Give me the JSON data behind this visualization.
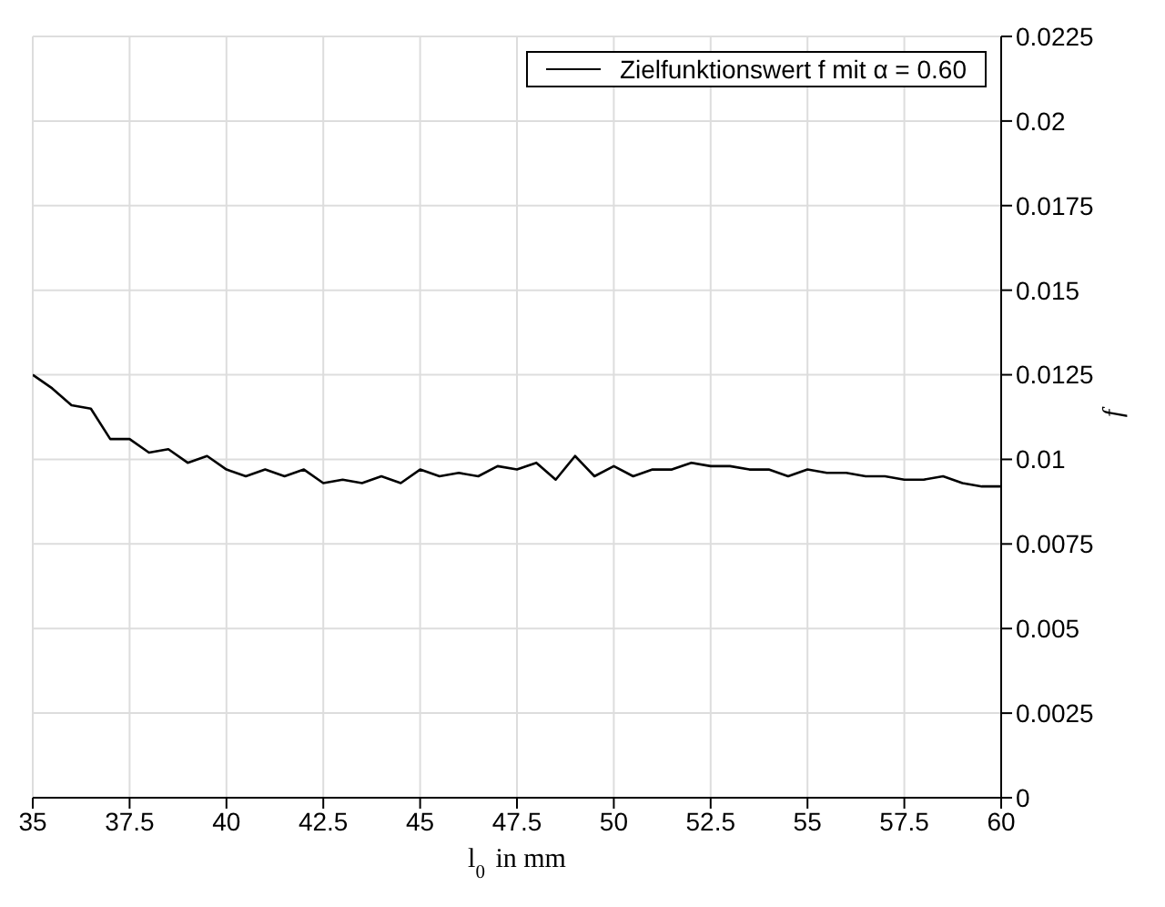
{
  "chart_data": {
    "type": "line",
    "xlabel": "l$_{0}$ in mm",
    "ylabel": "f",
    "x": [
      35,
      35.5,
      36,
      36.5,
      37,
      37.5,
      38,
      38.5,
      39,
      39.5,
      40,
      40.5,
      41,
      41.5,
      42,
      42.5,
      43,
      43.5,
      44,
      44.5,
      45,
      45.5,
      46,
      46.5,
      47,
      47.5,
      48,
      48.5,
      49,
      49.5,
      50,
      50.5,
      51,
      51.5,
      52,
      52.5,
      53,
      53.5,
      54,
      54.5,
      55,
      55.5,
      56,
      56.5,
      57,
      57.5,
      58,
      58.5,
      59,
      59.5,
      60
    ],
    "series": [
      {
        "name": "Zielfunktionswert f mit  α = 0.60",
        "color": "#000000",
        "values": [
          0.0125,
          0.0121,
          0.0116,
          0.0115,
          0.0106,
          0.0106,
          0.0102,
          0.0103,
          0.0099,
          0.0101,
          0.0097,
          0.0095,
          0.0097,
          0.0095,
          0.0097,
          0.0093,
          0.0094,
          0.0093,
          0.0095,
          0.0093,
          0.0097,
          0.0095,
          0.0096,
          0.0095,
          0.0098,
          0.0097,
          0.0099,
          0.0094,
          0.0101,
          0.0095,
          0.0098,
          0.0095,
          0.0097,
          0.0097,
          0.0099,
          0.0098,
          0.0098,
          0.0097,
          0.0097,
          0.0095,
          0.0097,
          0.0096,
          0.0096,
          0.0095,
          0.0095,
          0.0094,
          0.0094,
          0.0095,
          0.0093,
          0.0092,
          0.0092
        ]
      }
    ],
    "xlim": [
      35,
      60
    ],
    "xticks": [
      35,
      37.5,
      40,
      42.5,
      45,
      47.5,
      50,
      52.5,
      55,
      57.5,
      60
    ],
    "ylim": [
      0,
      0.0225
    ],
    "yticks": [
      0,
      0.0025,
      0.005,
      0.0075,
      0.01,
      0.0125,
      0.015,
      0.0175,
      0.02,
      0.0225
    ],
    "grid": true,
    "legend": "top right",
    "marker": "none",
    "line_style": "solid"
  }
}
